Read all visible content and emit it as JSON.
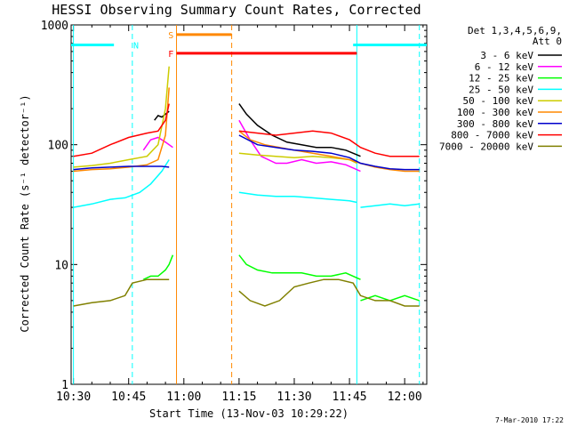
{
  "chart_data": {
    "type": "line",
    "title": "HESSI Observing Summary Count Rates, Corrected",
    "xlabel": "Start Time (13-Nov-03 10:29:22)",
    "ylabel": "Corrected Count Rate (s⁻¹ detector⁻¹)",
    "yscale": "log",
    "xlim": [
      "10:29:22",
      "12:06:00"
    ],
    "ylim": [
      1,
      1000
    ],
    "xticks": [
      "10:30",
      "10:45",
      "11:00",
      "11:15",
      "11:30",
      "11:45",
      "12:00"
    ],
    "yticks": [
      "1",
      "10",
      "100",
      "1000"
    ],
    "legend_header": [
      "Det 1,3,4,5,6,9,",
      "Att 0"
    ],
    "legend_position": "right",
    "footer": "7-Mar-2010 17:22",
    "series": [
      {
        "name": "3 - 6 keV",
        "color": "#000000",
        "segments": [
          {
            "x": [
              "10:52",
              "10:53",
              "10:54",
              "10:55",
              "10:56"
            ],
            "y": [
              160,
              175,
              170,
              180,
              190
            ]
          },
          {
            "x": [
              "11:15",
              "11:17",
              "11:20",
              "11:24",
              "11:28",
              "11:32",
              "11:36",
              "11:40",
              "11:44",
              "11:48"
            ],
            "y": [
              220,
              180,
              145,
              120,
              105,
              100,
              95,
              95,
              90,
              80
            ]
          }
        ]
      },
      {
        "name": "6 - 12 keV",
        "color": "#ff00ff",
        "segments": [
          {
            "x": [
              "10:49",
              "10:51",
              "10:53",
              "10:55",
              "10:57"
            ],
            "y": [
              90,
              110,
              115,
              105,
              95
            ]
          },
          {
            "x": [
              "11:15",
              "11:18",
              "11:21",
              "11:25",
              "11:28",
              "11:32",
              "11:36",
              "11:40",
              "11:44",
              "11:48"
            ],
            "y": [
              160,
              110,
              80,
              70,
              70,
              75,
              70,
              72,
              68,
              60
            ]
          }
        ]
      },
      {
        "name": "12 - 25 keV",
        "color": "#00ff00",
        "segments": [
          {
            "x": [
              "10:49",
              "10:51",
              "10:53",
              "10:55",
              "10:56",
              "10:57"
            ],
            "y": [
              7.5,
              8,
              8,
              9,
              10,
              12
            ]
          },
          {
            "x": [
              "11:15",
              "11:17",
              "11:20",
              "11:24",
              "11:28",
              "11:32",
              "11:36",
              "11:40",
              "11:44",
              "11:48"
            ],
            "y": [
              12,
              10,
              9,
              8.5,
              8.5,
              8.5,
              8,
              8,
              8.5,
              7.5
            ]
          },
          {
            "x": [
              "11:48",
              "11:52",
              "11:56",
              "12:00",
              "12:04"
            ],
            "y": [
              5,
              5.5,
              5,
              5.5,
              5
            ]
          }
        ]
      },
      {
        "name": "25 - 50 keV",
        "color": "#00ffff",
        "segments": [
          {
            "x": [
              "10:30",
              "10:35",
              "10:40",
              "10:44",
              "10:48",
              "10:51",
              "10:54",
              "10:56"
            ],
            "y": [
              30,
              32,
              35,
              36,
              40,
              47,
              60,
              75
            ]
          },
          {
            "x": [
              "11:15",
              "11:20",
              "11:25",
              "11:30",
              "11:35",
              "11:40",
              "11:45",
              "11:47"
            ],
            "y": [
              40,
              38,
              37,
              37,
              36,
              35,
              34,
              33
            ]
          },
          {
            "x": [
              "11:48",
              "11:52",
              "11:56",
              "12:00",
              "12:04"
            ],
            "y": [
              30,
              31,
              32,
              31,
              32
            ]
          }
        ]
      },
      {
        "name": "50 - 100 keV",
        "color": "#cccc00",
        "segments": [
          {
            "x": [
              "10:30",
              "10:35",
              "10:40",
              "10:45",
              "10:50",
              "10:53",
              "10:55",
              "10:56"
            ],
            "y": [
              65,
              67,
              70,
              75,
              80,
              100,
              200,
              450
            ]
          },
          {
            "x": [
              "11:15",
              "11:20",
              "11:25",
              "11:30",
              "11:35",
              "11:40",
              "11:45",
              "11:47"
            ],
            "y": [
              85,
              82,
              80,
              78,
              80,
              78,
              75,
              70
            ]
          }
        ]
      },
      {
        "name": "100 - 300 keV",
        "color": "#ff8800",
        "segments": [
          {
            "x": [
              "10:30",
              "10:35",
              "10:40",
              "10:45",
              "10:50",
              "10:53",
              "10:55",
              "10:56"
            ],
            "y": [
              60,
              62,
              63,
              65,
              68,
              75,
              120,
              300
            ]
          },
          {
            "x": [
              "11:15",
              "11:18",
              "11:22",
              "11:26",
              "11:30",
              "11:35",
              "11:40",
              "11:45",
              "11:48",
              "11:52",
              "11:56",
              "12:00",
              "12:04"
            ],
            "y": [
              130,
              110,
              100,
              95,
              90,
              85,
              80,
              75,
              70,
              65,
              62,
              60,
              60
            ]
          }
        ]
      },
      {
        "name": "300 - 800 keV",
        "color": "#0000cc",
        "segments": [
          {
            "x": [
              "10:30",
              "10:35",
              "10:40",
              "10:45",
              "10:50",
              "10:54",
              "10:56"
            ],
            "y": [
              62,
              64,
              65,
              66,
              66,
              66,
              65
            ]
          },
          {
            "x": [
              "11:15",
              "11:20",
              "11:25",
              "11:30",
              "11:35",
              "11:40",
              "11:45",
              "11:48",
              "11:52",
              "11:56",
              "12:00",
              "12:04"
            ],
            "y": [
              120,
              100,
              95,
              90,
              88,
              85,
              78,
              70,
              66,
              63,
              62,
              62
            ]
          }
        ]
      },
      {
        "name": "800 - 7000 keV",
        "color": "#ff0000",
        "segments": [
          {
            "x": [
              "10:30",
              "10:35",
              "10:40",
              "10:45",
              "10:50",
              "10:53",
              "10:55",
              "10:56"
            ],
            "y": [
              80,
              85,
              100,
              115,
              125,
              130,
              160,
              220
            ]
          },
          {
            "x": [
              "11:15",
              "11:20",
              "11:25",
              "11:30",
              "11:35",
              "11:40",
              "11:45",
              "11:48",
              "11:52",
              "11:56",
              "12:00",
              "12:04"
            ],
            "y": [
              130,
              125,
              120,
              125,
              130,
              125,
              110,
              95,
              85,
              80,
              80,
              80
            ]
          }
        ]
      },
      {
        "name": "7000 - 20000 keV",
        "color": "#808000",
        "segments": [
          {
            "x": [
              "10:30",
              "10:35",
              "10:40",
              "10:44",
              "10:46",
              "10:50",
              "10:54",
              "10:56"
            ],
            "y": [
              4.5,
              4.8,
              5,
              5.5,
              7,
              7.5,
              7.5,
              7.5
            ]
          },
          {
            "x": [
              "11:15",
              "11:18",
              "11:22",
              "11:26",
              "11:30",
              "11:34",
              "11:38",
              "11:42",
              "11:46",
              "11:48",
              "11:52",
              "11:56",
              "12:00",
              "12:04"
            ],
            "y": [
              6,
              5,
              4.5,
              5,
              6.5,
              7,
              7.5,
              7.5,
              7,
              5.5,
              5,
              5,
              4.5,
              4.5
            ]
          }
        ]
      }
    ],
    "state_bars": [
      {
        "label": "N",
        "color": "#00ffff",
        "y": 680,
        "ranges": [
          [
            "10:29:22",
            "10:41:00"
          ],
          [
            "11:46:00",
            "12:06:00"
          ]
        ]
      },
      {
        "label": "S",
        "color": "#ff8800",
        "y": 830,
        "ranges": [
          [
            "10:58:00",
            "11:13:00"
          ]
        ]
      },
      {
        "label": "F",
        "color": "#ff0000",
        "y": 580,
        "ranges": [
          [
            "10:58:00",
            "11:47:00"
          ]
        ]
      }
    ],
    "vlines": [
      {
        "x": "10:30:00",
        "color": "#00ffff",
        "style": "solid"
      },
      {
        "x": "10:46:00",
        "color": "#00ffff",
        "style": "dashed"
      },
      {
        "x": "10:58:00",
        "color": "#ff8800",
        "style": "solid"
      },
      {
        "x": "11:13:00",
        "color": "#ff8800",
        "style": "dashed"
      },
      {
        "x": "11:47:00",
        "color": "#00ffff",
        "style": "solid"
      },
      {
        "x": "12:04:00",
        "color": "#00ffff",
        "style": "dashed"
      }
    ]
  }
}
